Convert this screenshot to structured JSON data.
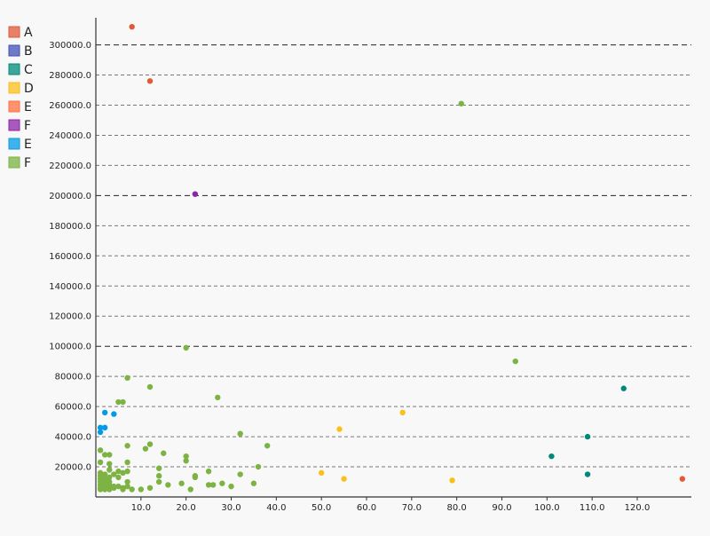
{
  "chart_data": {
    "type": "scatter",
    "title": "",
    "xlabel": "",
    "ylabel": "",
    "xlim": [
      0,
      132
    ],
    "ylim": [
      0,
      318000
    ],
    "x_ticks": [
      10,
      20,
      30,
      40,
      50,
      60,
      70,
      80,
      90,
      100,
      110,
      120
    ],
    "x_tick_labels": [
      "10.0",
      "20.0",
      "30.0",
      "40.0",
      "50.0",
      "60.0",
      "70.0",
      "80.0",
      "90.0",
      "100.0",
      "110.0",
      "120.0"
    ],
    "y_ticks": [
      20000,
      40000,
      60000,
      80000,
      100000,
      120000,
      140000,
      160000,
      180000,
      200000,
      220000,
      240000,
      260000,
      280000,
      300000
    ],
    "y_tick_labels": [
      "20000.0",
      "40000.0",
      "60000.0",
      "80000.0",
      "100000.0",
      "120000.0",
      "140000.0",
      "160000.0",
      "180000.0",
      "200000.0",
      "220000.0",
      "240000.0",
      "260000.0",
      "280000.0",
      "300000.0"
    ],
    "grid": "horizontal-dashed",
    "legend_position": "top-left",
    "series": [
      {
        "name": "A",
        "color": "#e05a3a",
        "points": [
          [
            8,
            312000
          ],
          [
            12,
            276000
          ],
          [
            130,
            12000
          ]
        ]
      },
      {
        "name": "B",
        "color": "#3f51b5",
        "points": []
      },
      {
        "name": "C",
        "color": "#00897b",
        "points": [
          [
            101,
            27000
          ],
          [
            109,
            40000
          ],
          [
            109,
            15000
          ],
          [
            117,
            72000
          ]
        ]
      },
      {
        "name": "D",
        "color": "#f9c01a",
        "points": [
          [
            50,
            16000
          ],
          [
            54,
            45000
          ],
          [
            55,
            12000
          ],
          [
            68,
            56000
          ],
          [
            79,
            11000
          ]
        ]
      },
      {
        "name": "E",
        "color": "#ff7043",
        "points": []
      },
      {
        "name": "F",
        "color": "#8e24aa",
        "points": [
          [
            22,
            201000
          ]
        ]
      },
      {
        "name": "E",
        "color": "#039be5",
        "points": [
          [
            1,
            46000
          ],
          [
            1,
            43000
          ],
          [
            2,
            46000
          ],
          [
            2,
            56000
          ],
          [
            4,
            55000
          ]
        ]
      },
      {
        "name": "F",
        "color": "#7cb342",
        "points": [
          [
            81,
            261000
          ],
          [
            20,
            99000
          ],
          [
            93,
            90000
          ],
          [
            7,
            79000
          ],
          [
            12,
            73000
          ],
          [
            27,
            66000
          ],
          [
            6,
            63000
          ],
          [
            5,
            63000
          ],
          [
            32,
            42000
          ],
          [
            7,
            34000
          ],
          [
            12,
            35000
          ],
          [
            38,
            34000
          ],
          [
            11,
            32000
          ],
          [
            15,
            29000
          ],
          [
            1,
            31000
          ],
          [
            3,
            28000
          ],
          [
            2,
            28000
          ],
          [
            20,
            27000
          ],
          [
            20,
            24000
          ],
          [
            7,
            23000
          ],
          [
            1,
            23000
          ],
          [
            3,
            22000
          ],
          [
            14,
            19000
          ],
          [
            36,
            20000
          ],
          [
            3,
            18000
          ],
          [
            25,
            17000
          ],
          [
            5,
            17000
          ],
          [
            6,
            16000
          ],
          [
            7,
            17000
          ],
          [
            1,
            16000
          ],
          [
            2,
            15000
          ],
          [
            4,
            15000
          ],
          [
            14,
            14000
          ],
          [
            22,
            14000
          ],
          [
            32,
            15000
          ],
          [
            22,
            13000
          ],
          [
            3,
            13000
          ],
          [
            1,
            12000
          ],
          [
            2,
            12000
          ],
          [
            5,
            13000
          ],
          [
            1,
            10000
          ],
          [
            3,
            10000
          ],
          [
            7,
            10000
          ],
          [
            14,
            10000
          ],
          [
            28,
            9000
          ],
          [
            35,
            9000
          ],
          [
            16,
            8000
          ],
          [
            19,
            9000
          ],
          [
            25,
            8000
          ],
          [
            26,
            8000
          ],
          [
            30,
            7000
          ],
          [
            1,
            8000
          ],
          [
            2,
            7000
          ],
          [
            4,
            7000
          ],
          [
            5,
            7000
          ],
          [
            6,
            6000
          ],
          [
            7,
            7000
          ],
          [
            1,
            6000
          ],
          [
            2,
            5000
          ],
          [
            3,
            5000
          ],
          [
            6,
            5000
          ],
          [
            8,
            5000
          ],
          [
            10,
            5000
          ],
          [
            12,
            6000
          ],
          [
            21,
            5000
          ],
          [
            1,
            5000
          ],
          [
            3,
            6000
          ],
          [
            4,
            6000
          ],
          [
            2,
            10000
          ],
          [
            3,
            8000
          ],
          [
            1,
            14000
          ]
        ]
      }
    ]
  }
}
